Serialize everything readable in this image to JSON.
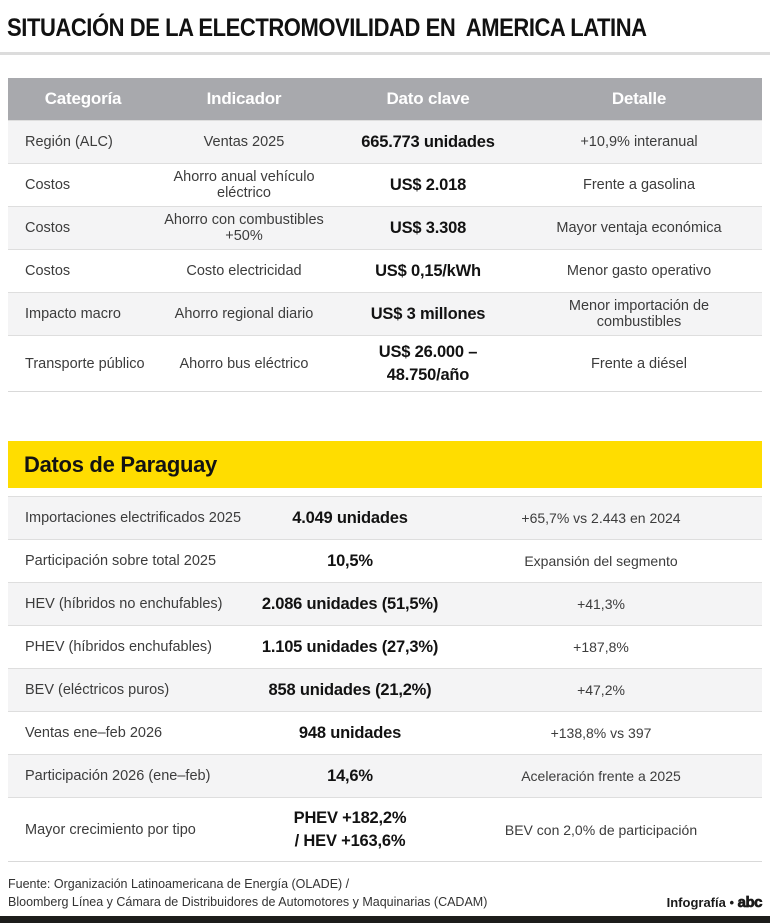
{
  "title": "SITUACIÓN DE LA ELECTROMOVILIDAD EN  AMERICA LATINA",
  "colors": {
    "header_gray": "#a8a9ad",
    "accent_yellow": "#ffdd00",
    "row_alt": "#f4f4f5",
    "bottom_bar": "#1d1d1b"
  },
  "alc_table": {
    "headers": [
      "Categoría",
      "Indicador",
      "Dato clave",
      "Detalle"
    ],
    "rows": [
      {
        "categoria": "Región (ALC)",
        "indicador": "Ventas 2025",
        "dato": "665.773 unidades",
        "detalle": "+10,9% interanual"
      },
      {
        "categoria": "Costos",
        "indicador": "Ahorro anual vehículo eléctrico",
        "dato": "US$ 2.018",
        "detalle": "Frente a gasolina"
      },
      {
        "categoria": "Costos",
        "indicador": "Ahorro con combustibles +50%",
        "dato": "US$ 3.308",
        "detalle": "Mayor ventaja económica"
      },
      {
        "categoria": "Costos",
        "indicador": "Costo electricidad",
        "dato": "US$ 0,15/kWh",
        "detalle": "Menor gasto operativo"
      },
      {
        "categoria": "Impacto macro",
        "indicador": "Ahorro regional diario",
        "dato": "US$ 3 millones",
        "detalle": "Menor importación de combustibles"
      },
      {
        "categoria": "Transporte público",
        "indicador": "Ahorro bus eléctrico",
        "dato": "US$ 26.000 –\n48.750/año",
        "detalle": "Frente a diésel"
      }
    ]
  },
  "paraguay_section": {
    "heading": "Datos de Paraguay",
    "rows": [
      {
        "label": "Importaciones electrificados 2025",
        "value": "4.049 unidades",
        "detail": "+65,7% vs 2.443 en 2024"
      },
      {
        "label": "Participación sobre total 2025",
        "value": "10,5%",
        "detail": "Expansión del segmento"
      },
      {
        "label": "HEV (híbridos no enchufables)",
        "value": "2.086 unidades (51,5%)",
        "detail": "+41,3%"
      },
      {
        "label": "PHEV (híbridos enchufables)",
        "value": "1.105 unidades (27,3%)",
        "detail": "+187,8%"
      },
      {
        "label": "BEV (eléctricos puros)",
        "value": "858 unidades (21,2%)",
        "detail": "+47,2%"
      },
      {
        "label": "Ventas ene–feb 2026",
        "value": "948 unidades",
        "detail": "+138,8% vs 397"
      },
      {
        "label": "Participación 2026 (ene–feb)",
        "value": "14,6%",
        "detail": "Aceleración frente a 2025"
      },
      {
        "label": "Mayor crecimiento por tipo",
        "value": "PHEV +182,2%\n/ HEV +163,6%",
        "detail": "BEV con 2,0% de participación"
      }
    ]
  },
  "footer": {
    "source_line1": "Fuente: Organización Latinoamericana de Energía (OLADE) /",
    "source_line2": "Bloomberg Línea y Cámara de Distribuidores de Automotores y Maquinarias (CADAM)",
    "credit_prefix": "Infografía •",
    "logo_text": "abc"
  }
}
